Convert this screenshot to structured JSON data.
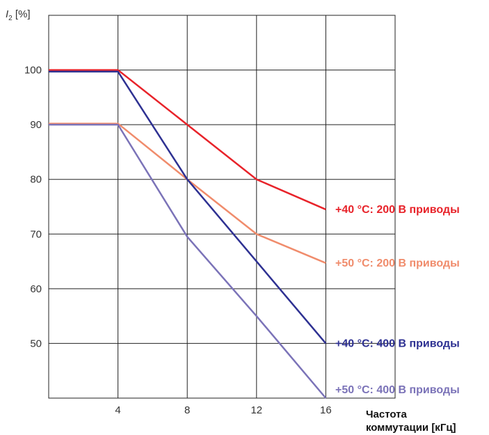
{
  "chart_data": {
    "type": "line",
    "ylabel_main": "I",
    "ylabel_sub": "2",
    "ylabel_unit": " [%]",
    "xlabel_line1": "Частота",
    "xlabel_line2": "коммутации [кГц]",
    "xticks": [
      4,
      8,
      12,
      16
    ],
    "yticks": [
      50,
      60,
      70,
      80,
      90,
      100
    ],
    "xlim": [
      0,
      20
    ],
    "ylim": [
      40,
      110
    ],
    "grid": true,
    "series": [
      {
        "name": "+40 °C: 200 В приводы",
        "color": "#e8232a",
        "x": [
          0,
          4,
          8,
          12,
          16
        ],
        "y": [
          100,
          100,
          90,
          80,
          74.5
        ]
      },
      {
        "name": "+50 °C: 200 В приводы",
        "color": "#f08c6c",
        "x": [
          0,
          4,
          8,
          12,
          16
        ],
        "y": [
          90.2,
          90.2,
          80,
          70,
          64.7
        ]
      },
      {
        "name": "+40 °C: 400 В приводы",
        "color": "#2e3192",
        "x": [
          0,
          4,
          8,
          12,
          16
        ],
        "y": [
          99.7,
          99.7,
          80,
          65,
          50
        ]
      },
      {
        "name": "+50 °C: 400 В приводы",
        "color": "#7b73b8",
        "x": [
          0,
          4,
          8,
          12,
          16
        ],
        "y": [
          90,
          90,
          69.5,
          55,
          40
        ]
      }
    ]
  }
}
